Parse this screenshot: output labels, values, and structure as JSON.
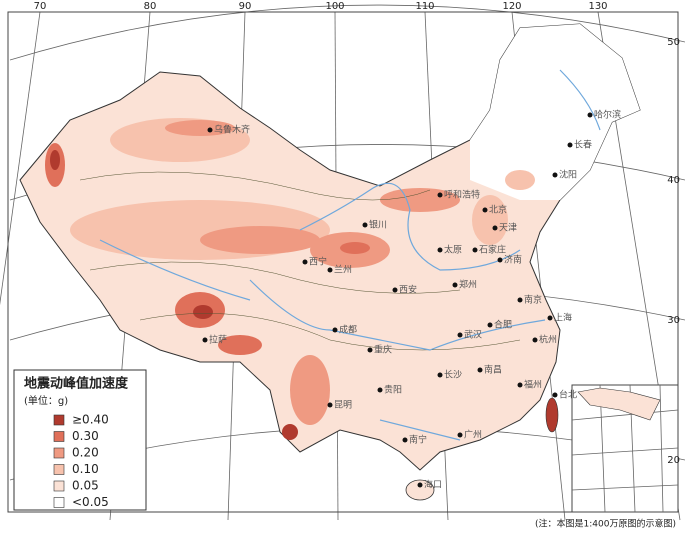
{
  "graticule": {
    "longitudes": [
      "70",
      "80",
      "90",
      "100",
      "110",
      "120",
      "130"
    ],
    "latitudes": [
      "50",
      "40",
      "30",
      "20"
    ]
  },
  "legend": {
    "title": "地震动峰值加速度",
    "unit": "(单位：g)",
    "items": [
      {
        "label": "≥0.40",
        "color": "#b03a2e"
      },
      {
        "label": "0.30",
        "color": "#e0705a"
      },
      {
        "label": "0.20",
        "color": "#ef9a82"
      },
      {
        "label": "0.10",
        "color": "#f7c2ad"
      },
      {
        "label": "0.05",
        "color": "#fbe2d6"
      },
      {
        "label": "<0.05",
        "color": "#ffffff"
      }
    ]
  },
  "cities": [
    "乌鲁木齐",
    "哈尔滨",
    "长春",
    "沈阳",
    "呼和浩特",
    "北京",
    "天津",
    "银川",
    "太原",
    "石家庄",
    "济南",
    "兰州",
    "西宁",
    "郑州",
    "西安",
    "南京",
    "上海",
    "合肥",
    "杭州",
    "成都",
    "武汉",
    "重庆",
    "长沙",
    "南昌",
    "福州",
    "贵阳",
    "昆明",
    "拉萨",
    "广州",
    "南宁",
    "台北",
    "海口"
  ],
  "note": "(注：本图是1:400万原图的示意图)"
}
